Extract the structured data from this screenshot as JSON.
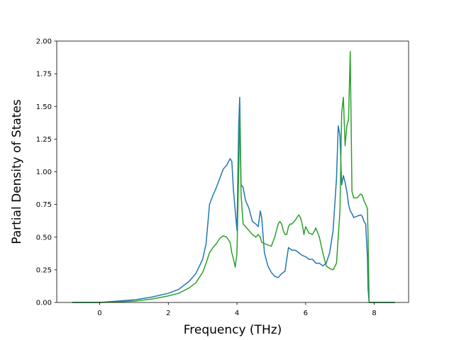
{
  "chart_data": {
    "type": "line",
    "title": "",
    "xlabel": "Frequency (THz)",
    "ylabel": "Partial Density of States",
    "xlim": [
      -1.25,
      9.0
    ],
    "ylim": [
      0.0,
      2.0
    ],
    "xticks": [
      0,
      2,
      4,
      6,
      8
    ],
    "xtick_labels": [
      "0",
      "2",
      "4",
      "6",
      "8"
    ],
    "yticks": [
      0.0,
      0.25,
      0.5,
      0.75,
      1.0,
      1.25,
      1.5,
      1.75,
      2.0
    ],
    "ytick_labels": [
      "0.00",
      "0.25",
      "0.50",
      "0.75",
      "1.00",
      "1.25",
      "1.50",
      "1.75",
      "2.00"
    ],
    "grid": false,
    "series": [
      {
        "color": "#1f77b4",
        "x": [
          -0.8,
          -0.3,
          0.0,
          0.5,
          1.0,
          1.5,
          2.0,
          2.3,
          2.6,
          2.8,
          3.0,
          3.1,
          3.2,
          3.3,
          3.4,
          3.5,
          3.6,
          3.7,
          3.8,
          3.85,
          3.9,
          3.95,
          4.0,
          4.05,
          4.08,
          4.12,
          4.18,
          4.25,
          4.35,
          4.45,
          4.55,
          4.62,
          4.68,
          4.72,
          4.8,
          4.9,
          5.0,
          5.1,
          5.2,
          5.3,
          5.4,
          5.5,
          5.55,
          5.6,
          5.7,
          5.8,
          5.9,
          6.0,
          6.1,
          6.2,
          6.3,
          6.4,
          6.5,
          6.6,
          6.7,
          6.8,
          6.9,
          6.95,
          7.0,
          7.05,
          7.1,
          7.15,
          7.2,
          7.25,
          7.3,
          7.35,
          7.4,
          7.5,
          7.6,
          7.65,
          7.7,
          7.75,
          7.8,
          7.82,
          7.85,
          8.0,
          8.3,
          8.6
        ],
        "y": [
          0.0,
          0.0,
          0.0,
          0.01,
          0.02,
          0.04,
          0.07,
          0.1,
          0.16,
          0.22,
          0.33,
          0.45,
          0.75,
          0.82,
          0.88,
          0.95,
          1.02,
          1.05,
          1.1,
          1.08,
          0.85,
          0.7,
          0.55,
          1.35,
          1.57,
          0.9,
          0.88,
          0.78,
          0.72,
          0.62,
          0.6,
          0.58,
          0.7,
          0.65,
          0.38,
          0.28,
          0.23,
          0.2,
          0.19,
          0.22,
          0.24,
          0.42,
          0.41,
          0.4,
          0.4,
          0.38,
          0.36,
          0.35,
          0.33,
          0.33,
          0.3,
          0.3,
          0.28,
          0.3,
          0.38,
          0.55,
          0.95,
          1.35,
          1.28,
          0.9,
          0.97,
          0.92,
          0.85,
          0.75,
          0.7,
          0.68,
          0.65,
          0.66,
          0.67,
          0.66,
          0.62,
          0.6,
          0.35,
          0.1,
          0.0,
          0.0,
          0.0,
          0.0
        ]
      },
      {
        "color": "#2ca02c",
        "x": [
          -0.8,
          -0.3,
          0.0,
          0.5,
          1.0,
          1.5,
          2.0,
          2.3,
          2.6,
          2.8,
          3.0,
          3.1,
          3.2,
          3.3,
          3.4,
          3.5,
          3.6,
          3.7,
          3.8,
          3.85,
          3.9,
          3.95,
          4.0,
          4.05,
          4.08,
          4.12,
          4.18,
          4.25,
          4.35,
          4.45,
          4.55,
          4.62,
          4.68,
          4.72,
          4.8,
          4.9,
          5.0,
          5.1,
          5.2,
          5.25,
          5.3,
          5.35,
          5.4,
          5.45,
          5.5,
          5.55,
          5.6,
          5.7,
          5.75,
          5.8,
          5.85,
          5.9,
          5.95,
          6.0,
          6.1,
          6.2,
          6.3,
          6.4,
          6.5,
          6.6,
          6.7,
          6.8,
          6.9,
          6.95,
          7.0,
          7.05,
          7.1,
          7.15,
          7.2,
          7.25,
          7.3,
          7.35,
          7.4,
          7.5,
          7.6,
          7.65,
          7.7,
          7.75,
          7.8,
          7.82,
          7.85,
          8.0,
          8.3,
          8.6
        ],
        "y": [
          0.0,
          0.0,
          0.0,
          0.005,
          0.01,
          0.025,
          0.05,
          0.07,
          0.11,
          0.15,
          0.23,
          0.3,
          0.38,
          0.42,
          0.45,
          0.49,
          0.51,
          0.5,
          0.46,
          0.38,
          0.33,
          0.27,
          0.38,
          1.0,
          1.45,
          0.82,
          0.6,
          0.58,
          0.55,
          0.52,
          0.5,
          0.52,
          0.5,
          0.46,
          0.45,
          0.44,
          0.43,
          0.5,
          0.6,
          0.62,
          0.6,
          0.55,
          0.52,
          0.52,
          0.58,
          0.6,
          0.6,
          0.63,
          0.65,
          0.67,
          0.65,
          0.6,
          0.52,
          0.58,
          0.53,
          0.52,
          0.57,
          0.5,
          0.38,
          0.28,
          0.26,
          0.25,
          0.3,
          0.5,
          0.7,
          1.45,
          1.57,
          1.2,
          1.35,
          1.4,
          1.92,
          0.85,
          0.8,
          0.8,
          0.83,
          0.82,
          0.78,
          0.75,
          0.72,
          0.5,
          0.0,
          0.0,
          0.0,
          0.0
        ]
      }
    ]
  }
}
